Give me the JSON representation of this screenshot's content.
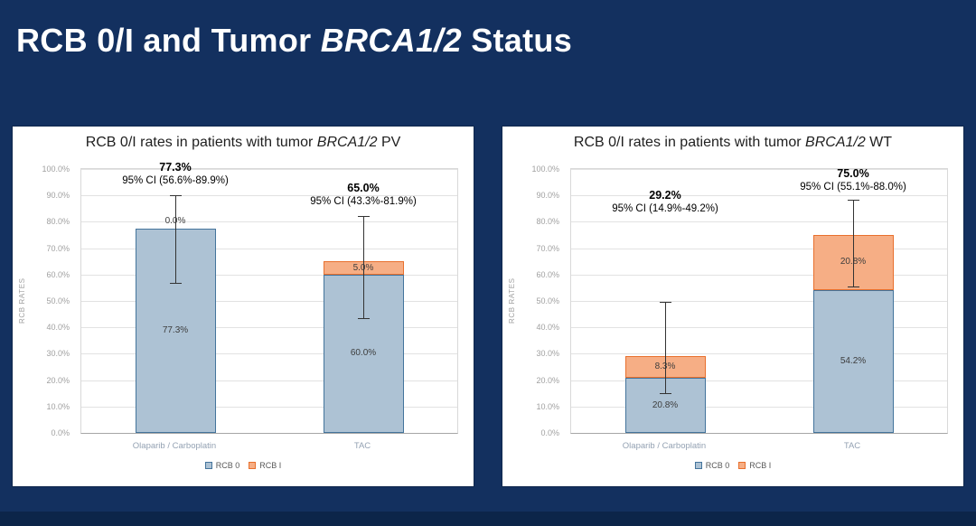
{
  "slide": {
    "title": {
      "prefix": "RCB 0/I and Tumor ",
      "italic": "BRCA1/2",
      "suffix": " Status"
    },
    "background_color": "#13305f",
    "footer_color": "#0c2549"
  },
  "chart_data": [
    {
      "type": "bar",
      "stacked": true,
      "title": {
        "prefix": "RCB 0/I rates in patients with tumor ",
        "italic": "BRCA1/2",
        "suffix": " PV"
      },
      "ylabel": "RCB RATES",
      "ylim": [
        0,
        100
      ],
      "ytick_step": 10,
      "ytick_labels": [
        "0.0%",
        "10.0%",
        "20.0%",
        "30.0%",
        "40.0%",
        "50.0%",
        "60.0%",
        "70.0%",
        "80.0%",
        "90.0%",
        "100.0%"
      ],
      "grid": true,
      "legend_position": "bottom",
      "categories": [
        "Olaparib / Carboplatin",
        "TAC"
      ],
      "series": [
        {
          "name": "RCB 0",
          "fill": "#adc2d4",
          "border": "#44749c",
          "values": [
            77.3,
            60.0
          ],
          "labels": [
            "77.3%",
            "60.0%"
          ]
        },
        {
          "name": "RCB I",
          "fill": "#f6ae85",
          "border": "#e8702e",
          "values": [
            0.0,
            5.0
          ],
          "labels": [
            "0.0%",
            "5.0%"
          ]
        }
      ],
      "totals": [
        {
          "label": "77.3%",
          "ci_label": "95% CI (56.6%-89.9%)",
          "ci_low": 56.6,
          "ci_high": 89.9,
          "anchor_pct": 93.5
        },
        {
          "label": "65.0%",
          "ci_label": "95% CI (43.3%-81.9%)",
          "ci_low": 43.3,
          "ci_high": 81.9,
          "anchor_pct": 85.5
        }
      ]
    },
    {
      "type": "bar",
      "stacked": true,
      "title": {
        "prefix": "RCB 0/I rates in patients with tumor ",
        "italic": "BRCA1/2",
        "suffix": " WT"
      },
      "ylabel": "RCB RATES",
      "ylim": [
        0,
        100
      ],
      "ytick_step": 10,
      "ytick_labels": [
        "0.0%",
        "10.0%",
        "20.0%",
        "30.0%",
        "40.0%",
        "50.0%",
        "60.0%",
        "70.0%",
        "80.0%",
        "90.0%",
        "100.0%"
      ],
      "grid": true,
      "legend_position": "bottom",
      "categories": [
        "Olaparib / Carboplatin",
        "TAC"
      ],
      "series": [
        {
          "name": "RCB 0",
          "fill": "#adc2d4",
          "border": "#44749c",
          "values": [
            20.8,
            54.2
          ],
          "labels": [
            "20.8%",
            "54.2%"
          ]
        },
        {
          "name": "RCB I",
          "fill": "#f6ae85",
          "border": "#e8702e",
          "values": [
            8.3,
            20.8
          ],
          "labels": [
            "8.3%",
            "20.8%"
          ]
        }
      ],
      "totals": [
        {
          "label": "29.2%",
          "ci_label": "95% CI (14.9%-49.2%)",
          "ci_low": 14.9,
          "ci_high": 49.2,
          "anchor_pct": 83.0
        },
        {
          "label": "75.0%",
          "ci_label": "95% CI (55.1%-88.0%)",
          "ci_low": 55.1,
          "ci_high": 88.0,
          "anchor_pct": 91.0
        }
      ]
    }
  ]
}
